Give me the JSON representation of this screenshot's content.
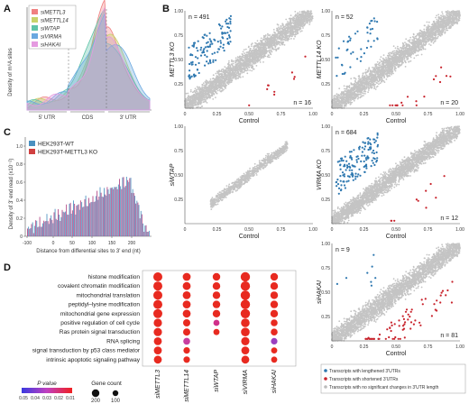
{
  "panel_labels": [
    "A",
    "B",
    "C",
    "D"
  ],
  "panelA": {
    "ylabel": "Density of m⁶A sites",
    "segments": [
      "5' UTR",
      "CDS",
      "3' UTR"
    ],
    "legend": [
      {
        "label": "siMETTL3",
        "color": "#f08080"
      },
      {
        "label": "siMETTL14",
        "color": "#c8d36a"
      },
      {
        "label": "siWTAP",
        "color": "#5fc4a8"
      },
      {
        "label": "siVIRMA",
        "color": "#6aa8e0"
      },
      {
        "label": "siHAKAI",
        "color": "#e59ae0"
      }
    ]
  },
  "panelC": {
    "ylabel": "Density of 3' end read (x10⁻²)",
    "xlabel": "Distance from differential sites to 3' end (nt)",
    "legend": [
      {
        "label": "HEK293T-WT",
        "color": "#4a90c0"
      },
      {
        "label": "HEK293T-METTL3 KO",
        "color": "#d04040"
      }
    ],
    "x_ticks": [
      "-100",
      "0",
      "50",
      "100",
      "150",
      "200"
    ],
    "y_ticks": [
      "0",
      "0.2",
      "0.4",
      "0.6",
      "0.8",
      "1.0"
    ]
  },
  "panelB": {
    "xlabel": "Control",
    "ticks": [
      "0",
      "0.25",
      "0.50",
      "0.75",
      "1.00"
    ],
    "plots": [
      {
        "ylabel": "METTL3 KO",
        "n_up": "n = 491",
        "n_down": "n = 16"
      },
      {
        "ylabel": "METTL14 KO",
        "n_up": "n = 52",
        "n_down": "n = 20"
      },
      {
        "ylabel": "siWTAP",
        "n_up": "",
        "n_down": ""
      },
      {
        "ylabel": "VIRMA KO",
        "n_up": "n = 684",
        "n_down": "n = 12"
      },
      {
        "ylabel": "siHAKAI",
        "n_up": "n = 9",
        "n_down": "n = 81"
      }
    ],
    "legend": [
      {
        "label": "Transcripts with lengthened 3'UTRs",
        "color": "#2e78b0"
      },
      {
        "label": "Transcripts with shortened 3'UTRs",
        "color": "#c8232c"
      },
      {
        "label": "Transcripts with no significant changes in 3'UTR length",
        "color": "#bbbbbb"
      }
    ]
  },
  "panelD": {
    "terms": [
      "histone modification",
      "covalent chromatin modification",
      "mitochondrial translation",
      "peptidyl–lysine modification",
      "mitochondrial gene expression",
      "positive regulation of cell cycle",
      "Ras protein signal transduction",
      "RNA splicing",
      "signal transduction by p53 class mediator",
      "intrinsic apoptotic signaling pathway"
    ],
    "samples": [
      "siMETTL3",
      "siMETTL14",
      "siWTAP",
      "siVIRMA",
      "siHAKAI"
    ],
    "legend_p_title": "P value",
    "p_ticks": [
      "0.05",
      "0.04",
      "0.03",
      "0.02",
      "0.01"
    ],
    "legend_count_title": "Gene count",
    "count_ticks": [
      "200",
      "100"
    ]
  }
}
